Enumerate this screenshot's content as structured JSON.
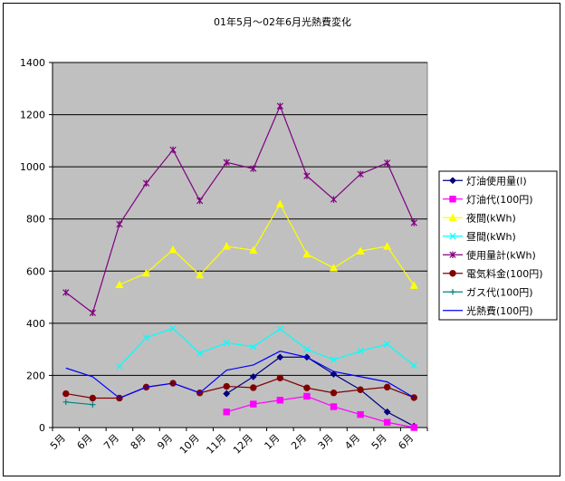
{
  "chart_data": {
    "type": "line",
    "title": "01年5月～02年6月光熱費変化",
    "xlabel": "",
    "ylabel": "",
    "categories": [
      "5月",
      "6月",
      "7月",
      "8月",
      "9月",
      "10月",
      "11月",
      "12月",
      "1月",
      "2月",
      "3月",
      "4月",
      "5月",
      "6月"
    ],
    "ylim": [
      0,
      1400
    ],
    "yticks": [
      0,
      200,
      400,
      600,
      800,
      1000,
      1200,
      1400
    ],
    "grid": true,
    "legend_position": "right",
    "plot_background": "#c0c0c0",
    "series": [
      {
        "name": "灯油使用量(l)",
        "color": "#000080",
        "marker": "diamond",
        "values": [
          null,
          null,
          null,
          null,
          null,
          null,
          130,
          195,
          270,
          270,
          205,
          145,
          60,
          5
        ]
      },
      {
        "name": "灯油代(100円)",
        "color": "#ff00ff",
        "marker": "square",
        "values": [
          null,
          null,
          null,
          null,
          null,
          null,
          60,
          90,
          105,
          120,
          80,
          50,
          20,
          0
        ]
      },
      {
        "name": "夜間(kWh)",
        "color": "#ffff00",
        "marker": "triangle",
        "values": [
          null,
          null,
          548,
          592,
          682,
          585,
          695,
          680,
          857,
          665,
          612,
          677,
          695,
          545
        ]
      },
      {
        "name": "昼間(kWh)",
        "color": "#00ffff",
        "marker": "x",
        "values": [
          null,
          null,
          235,
          345,
          380,
          285,
          325,
          310,
          378,
          300,
          260,
          293,
          320,
          238
        ]
      },
      {
        "name": "使用量計(kWh)",
        "color": "#800080",
        "marker": "star",
        "values": [
          518,
          440,
          780,
          937,
          1065,
          870,
          1017,
          993,
          1233,
          965,
          875,
          972,
          1015,
          785
        ]
      },
      {
        "name": "電気料金(100円)",
        "color": "#800000",
        "marker": "circle",
        "values": [
          130,
          113,
          113,
          155,
          170,
          133,
          158,
          153,
          190,
          152,
          133,
          145,
          155,
          115
        ]
      },
      {
        "name": "ガス代(100円)",
        "color": "#008080",
        "marker": "plus",
        "values": [
          98,
          88,
          null,
          null,
          null,
          null,
          null,
          null,
          null,
          null,
          null,
          null,
          null,
          null
        ]
      },
      {
        "name": "光熱費(100円)",
        "color": "#0000ff",
        "marker": "none",
        "values": [
          228,
          195,
          113,
          155,
          170,
          133,
          220,
          240,
          293,
          270,
          215,
          195,
          175,
          115
        ]
      }
    ]
  }
}
